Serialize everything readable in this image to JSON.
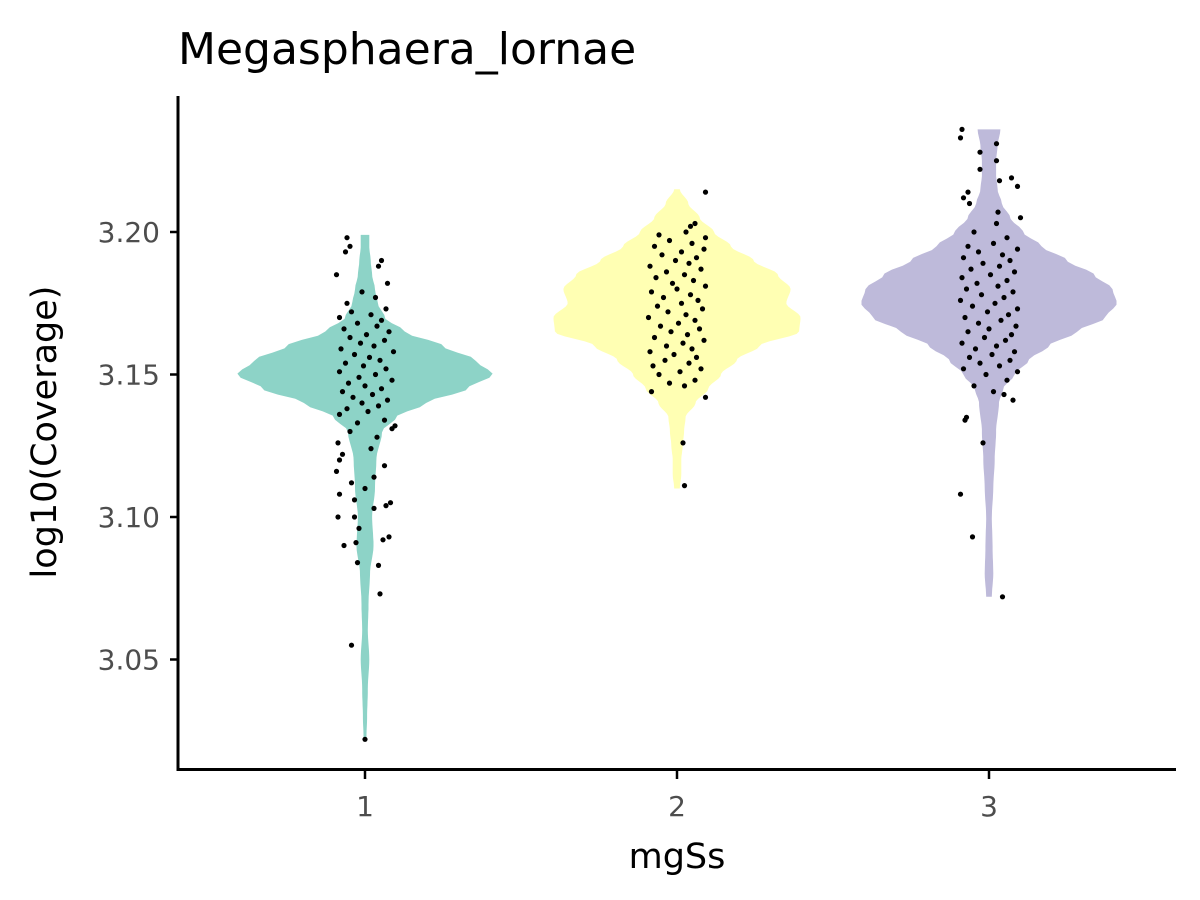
{
  "chart_data": {
    "type": "violin",
    "title": "Megasphaera_lornae",
    "xlabel": "mgSs",
    "ylabel": "log10(Coverage)",
    "categories": [
      "1",
      "2",
      "3"
    ],
    "ylim": [
      3.014,
      3.25
    ],
    "yticks": [
      "3.05",
      "3.10",
      "3.15",
      "3.20"
    ],
    "grid": false,
    "legend": "none",
    "series": [
      {
        "category": "1",
        "color": "#8DD3C7",
        "min": 3.022,
        "max": 3.199,
        "density": [
          [
            3.022,
            0.01
          ],
          [
            3.03,
            0.015
          ],
          [
            3.04,
            0.02
          ],
          [
            3.05,
            0.03
          ],
          [
            3.06,
            0.02
          ],
          [
            3.07,
            0.025
          ],
          [
            3.08,
            0.035
          ],
          [
            3.09,
            0.06
          ],
          [
            3.1,
            0.05
          ],
          [
            3.11,
            0.07
          ],
          [
            3.12,
            0.08
          ],
          [
            3.13,
            0.12
          ],
          [
            3.135,
            0.22
          ],
          [
            3.14,
            0.43
          ],
          [
            3.145,
            0.72
          ],
          [
            3.15,
            0.9
          ],
          [
            3.155,
            0.78
          ],
          [
            3.16,
            0.55
          ],
          [
            3.165,
            0.28
          ],
          [
            3.17,
            0.14
          ],
          [
            3.175,
            0.09
          ],
          [
            3.18,
            0.07
          ],
          [
            3.185,
            0.05
          ],
          [
            3.19,
            0.04
          ],
          [
            3.195,
            0.03
          ],
          [
            3.199,
            0.03
          ]
        ],
        "points": [
          [
            3.022,
            0.0
          ],
          [
            3.055,
            -0.09
          ],
          [
            3.073,
            0.1
          ],
          [
            3.083,
            0.09
          ],
          [
            3.084,
            -0.05
          ],
          [
            3.09,
            -0.14
          ],
          [
            3.091,
            -0.06
          ],
          [
            3.092,
            0.12
          ],
          [
            3.093,
            0.16
          ],
          [
            3.096,
            -0.04
          ],
          [
            3.1,
            -0.18
          ],
          [
            3.1,
            -0.07
          ],
          [
            3.103,
            0.06
          ],
          [
            3.104,
            0.14
          ],
          [
            3.105,
            0.17
          ],
          [
            3.106,
            -0.07
          ],
          [
            3.108,
            -0.17
          ],
          [
            3.11,
            0.0
          ],
          [
            3.112,
            -0.09
          ],
          [
            3.114,
            0.06
          ],
          [
            3.116,
            -0.19
          ],
          [
            3.118,
            0.13
          ],
          [
            3.12,
            -0.17
          ],
          [
            3.122,
            -0.15
          ],
          [
            3.124,
            0.04
          ],
          [
            3.126,
            -0.18
          ],
          [
            3.128,
            0.08
          ],
          [
            3.13,
            -0.1
          ],
          [
            3.131,
            0.18
          ],
          [
            3.132,
            0.2
          ],
          [
            3.133,
            -0.05
          ],
          [
            3.134,
            0.13
          ],
          [
            3.136,
            -0.17
          ],
          [
            3.137,
            0.02
          ],
          [
            3.138,
            -0.12
          ],
          [
            3.139,
            0.09
          ],
          [
            3.14,
            -0.02
          ],
          [
            3.141,
            0.15
          ],
          [
            3.142,
            -0.08
          ],
          [
            3.143,
            0.05
          ],
          [
            3.144,
            -0.15
          ],
          [
            3.145,
            0.11
          ],
          [
            3.146,
            0.0
          ],
          [
            3.147,
            -0.11
          ],
          [
            3.148,
            0.18
          ],
          [
            3.149,
            -0.04
          ],
          [
            3.15,
            0.07
          ],
          [
            3.151,
            -0.17
          ],
          [
            3.152,
            0.14
          ],
          [
            3.153,
            -0.01
          ],
          [
            3.154,
            -0.13
          ],
          [
            3.155,
            0.1
          ],
          [
            3.156,
            0.03
          ],
          [
            3.157,
            -0.07
          ],
          [
            3.158,
            0.19
          ],
          [
            3.159,
            -0.16
          ],
          [
            3.16,
            0.06
          ],
          [
            3.161,
            -0.03
          ],
          [
            3.162,
            0.13
          ],
          [
            3.163,
            -0.1
          ],
          [
            3.164,
            0.01
          ],
          [
            3.165,
            0.16
          ],
          [
            3.166,
            -0.14
          ],
          [
            3.167,
            0.08
          ],
          [
            3.168,
            -0.05
          ],
          [
            3.169,
            0.11
          ],
          [
            3.17,
            -0.17
          ],
          [
            3.171,
            0.04
          ],
          [
            3.172,
            -0.09
          ],
          [
            3.173,
            0.14
          ],
          [
            3.175,
            -0.12
          ],
          [
            3.177,
            0.07
          ],
          [
            3.179,
            -0.02
          ],
          [
            3.182,
            0.15
          ],
          [
            3.185,
            -0.19
          ],
          [
            3.188,
            0.09
          ],
          [
            3.19,
            0.11
          ],
          [
            3.193,
            -0.13
          ],
          [
            3.195,
            -0.1
          ],
          [
            3.198,
            -0.12
          ]
        ]
      },
      {
        "category": "2",
        "color": "#FFFFB3",
        "min": 3.11,
        "max": 3.215,
        "density": [
          [
            3.11,
            0.02
          ],
          [
            3.115,
            0.03
          ],
          [
            3.12,
            0.03
          ],
          [
            3.125,
            0.04
          ],
          [
            3.13,
            0.05
          ],
          [
            3.135,
            0.06
          ],
          [
            3.14,
            0.13
          ],
          [
            3.145,
            0.22
          ],
          [
            3.15,
            0.31
          ],
          [
            3.155,
            0.42
          ],
          [
            3.16,
            0.58
          ],
          [
            3.165,
            0.86
          ],
          [
            3.17,
            0.87
          ],
          [
            3.175,
            0.77
          ],
          [
            3.18,
            0.8
          ],
          [
            3.185,
            0.71
          ],
          [
            3.19,
            0.54
          ],
          [
            3.195,
            0.38
          ],
          [
            3.2,
            0.26
          ],
          [
            3.205,
            0.16
          ],
          [
            3.21,
            0.08
          ],
          [
            3.215,
            0.02
          ]
        ],
        "points": [
          [
            3.111,
            0.05
          ],
          [
            3.126,
            0.04
          ],
          [
            3.142,
            0.19
          ],
          [
            3.144,
            -0.17
          ],
          [
            3.146,
            0.05
          ],
          [
            3.147,
            -0.05
          ],
          [
            3.148,
            0.12
          ],
          [
            3.15,
            -0.12
          ],
          [
            3.151,
            0.02
          ],
          [
            3.152,
            0.16
          ],
          [
            3.153,
            -0.16
          ],
          [
            3.154,
            0.08
          ],
          [
            3.155,
            -0.08
          ],
          [
            3.156,
            0.13
          ],
          [
            3.157,
            -0.02
          ],
          [
            3.158,
            -0.18
          ],
          [
            3.159,
            0.1
          ],
          [
            3.16,
            -0.07
          ],
          [
            3.161,
            0.04
          ],
          [
            3.162,
            0.18
          ],
          [
            3.163,
            -0.15
          ],
          [
            3.164,
            0.07
          ],
          [
            3.165,
            -0.04
          ],
          [
            3.166,
            0.15
          ],
          [
            3.167,
            -0.11
          ],
          [
            3.168,
            0.01
          ],
          [
            3.169,
            0.12
          ],
          [
            3.17,
            -0.19
          ],
          [
            3.171,
            0.06
          ],
          [
            3.172,
            -0.06
          ],
          [
            3.173,
            0.17
          ],
          [
            3.174,
            -0.13
          ],
          [
            3.175,
            0.03
          ],
          [
            3.176,
            0.14
          ],
          [
            3.177,
            -0.09
          ],
          [
            3.178,
            0.09
          ],
          [
            3.179,
            -0.17
          ],
          [
            3.18,
            0.0
          ],
          [
            3.181,
            0.19
          ],
          [
            3.182,
            -0.03
          ],
          [
            3.183,
            0.11
          ],
          [
            3.184,
            -0.14
          ],
          [
            3.185,
            0.05
          ],
          [
            3.186,
            -0.07
          ],
          [
            3.187,
            0.16
          ],
          [
            3.188,
            -0.18
          ],
          [
            3.189,
            0.08
          ],
          [
            3.19,
            -0.01
          ],
          [
            3.191,
            0.13
          ],
          [
            3.192,
            -0.1
          ],
          [
            3.193,
            0.03
          ],
          [
            3.194,
            0.18
          ],
          [
            3.195,
            -0.15
          ],
          [
            3.196,
            0.1
          ],
          [
            3.197,
            -0.05
          ],
          [
            3.198,
            0.19
          ],
          [
            3.199,
            -0.12
          ],
          [
            3.2,
            0.06
          ],
          [
            3.202,
            0.09
          ],
          [
            3.203,
            0.12
          ],
          [
            3.214,
            0.19
          ]
        ]
      },
      {
        "category": "3",
        "color": "#BEBADA",
        "min": 3.072,
        "max": 3.236,
        "density": [
          [
            3.072,
            0.02
          ],
          [
            3.08,
            0.03
          ],
          [
            3.09,
            0.025
          ],
          [
            3.1,
            0.02
          ],
          [
            3.11,
            0.03
          ],
          [
            3.12,
            0.04
          ],
          [
            3.13,
            0.05
          ],
          [
            3.14,
            0.07
          ],
          [
            3.145,
            0.1
          ],
          [
            3.15,
            0.18
          ],
          [
            3.155,
            0.28
          ],
          [
            3.16,
            0.42
          ],
          [
            3.165,
            0.62
          ],
          [
            3.17,
            0.82
          ],
          [
            3.175,
            0.9
          ],
          [
            3.18,
            0.87
          ],
          [
            3.185,
            0.74
          ],
          [
            3.19,
            0.55
          ],
          [
            3.195,
            0.37
          ],
          [
            3.2,
            0.24
          ],
          [
            3.205,
            0.15
          ],
          [
            3.21,
            0.09
          ],
          [
            3.215,
            0.06
          ],
          [
            3.22,
            0.05
          ],
          [
            3.225,
            0.05
          ],
          [
            3.23,
            0.06
          ],
          [
            3.236,
            0.08
          ]
        ],
        "points": [
          [
            3.072,
            0.09
          ],
          [
            3.093,
            -0.11
          ],
          [
            3.108,
            -0.19
          ],
          [
            3.126,
            -0.04
          ],
          [
            3.134,
            -0.16
          ],
          [
            3.135,
            -0.15
          ],
          [
            3.141,
            0.16
          ],
          [
            3.143,
            0.1
          ],
          [
            3.144,
            0.03
          ],
          [
            3.146,
            -0.1
          ],
          [
            3.148,
            0.12
          ],
          [
            3.15,
            -0.02
          ],
          [
            3.151,
            0.19
          ],
          [
            3.152,
            -0.17
          ],
          [
            3.153,
            0.07
          ],
          [
            3.154,
            -0.06
          ],
          [
            3.155,
            0.14
          ],
          [
            3.156,
            -0.13
          ],
          [
            3.157,
            0.02
          ],
          [
            3.158,
            0.17
          ],
          [
            3.159,
            -0.09
          ],
          [
            3.16,
            0.05
          ],
          [
            3.161,
            -0.18
          ],
          [
            3.162,
            0.11
          ],
          [
            3.163,
            -0.03
          ],
          [
            3.164,
            0.15
          ],
          [
            3.165,
            -0.14
          ],
          [
            3.166,
            0.0
          ],
          [
            3.167,
            0.18
          ],
          [
            3.168,
            -0.07
          ],
          [
            3.169,
            0.08
          ],
          [
            3.17,
            -0.16
          ],
          [
            3.171,
            0.13
          ],
          [
            3.172,
            -0.01
          ],
          [
            3.173,
            0.19
          ],
          [
            3.174,
            -0.11
          ],
          [
            3.175,
            0.04
          ],
          [
            3.176,
            -0.19
          ],
          [
            3.177,
            0.1
          ],
          [
            3.178,
            -0.05
          ],
          [
            3.179,
            0.16
          ],
          [
            3.18,
            -0.15
          ],
          [
            3.181,
            0.06
          ],
          [
            3.182,
            -0.08
          ],
          [
            3.183,
            0.12
          ],
          [
            3.184,
            -0.18
          ],
          [
            3.185,
            0.01
          ],
          [
            3.186,
            0.17
          ],
          [
            3.187,
            -0.12
          ],
          [
            3.188,
            0.07
          ],
          [
            3.189,
            -0.04
          ],
          [
            3.19,
            0.14
          ],
          [
            3.191,
            -0.17
          ],
          [
            3.192,
            0.09
          ],
          [
            3.193,
            -0.07
          ],
          [
            3.194,
            0.19
          ],
          [
            3.195,
            -0.14
          ],
          [
            3.196,
            0.03
          ],
          [
            3.198,
            0.12
          ],
          [
            3.2,
            -0.1
          ],
          [
            3.203,
            0.05
          ],
          [
            3.205,
            0.21
          ],
          [
            3.207,
            0.06
          ],
          [
            3.21,
            -0.13
          ],
          [
            3.212,
            -0.17
          ],
          [
            3.214,
            -0.14
          ],
          [
            3.216,
            0.19
          ],
          [
            3.218,
            0.07
          ],
          [
            3.219,
            0.15
          ],
          [
            3.222,
            -0.06
          ],
          [
            3.225,
            0.05
          ],
          [
            3.228,
            -0.06
          ],
          [
            3.231,
            0.05
          ],
          [
            3.233,
            -0.19
          ],
          [
            3.236,
            -0.18
          ]
        ]
      }
    ]
  }
}
